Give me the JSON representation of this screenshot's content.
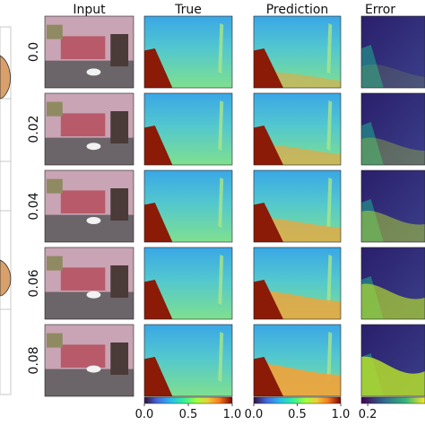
{
  "chart_data": {
    "type": "heatmap",
    "title": "",
    "columns": [
      "Input",
      "True",
      "Prediction",
      "Error"
    ],
    "row_labels": [
      "0.0",
      "0.02",
      "0.04",
      "0.06",
      "0.08"
    ],
    "colorbars": [
      {
        "under": "True",
        "ticks": [
          "0.0",
          "0.5",
          "1.0"
        ],
        "range": [
          0,
          1
        ],
        "colormap": "turbo"
      },
      {
        "under": "Prediction",
        "ticks": [
          "0.0",
          "0.5",
          "1.0"
        ],
        "range": [
          0,
          1
        ],
        "colormap": "turbo"
      },
      {
        "under": "Error",
        "ticks": [
          "0.2"
        ],
        "colormap": "viridis"
      }
    ],
    "xlabel": "",
    "ylabel": ""
  },
  "colors": {
    "turbo_low": "#30123b",
    "turbo_mid": "#4fd16b",
    "turbo_high": "#7a0403",
    "depth_bg": "#5cc8c4",
    "depth_top": "#3aa7e6",
    "error_low": "#440154",
    "error_high": "#fde725",
    "photo_wall": "#c9a4b4",
    "photo_floor": "#6b6468",
    "photo_bed": "#b85a6a"
  }
}
